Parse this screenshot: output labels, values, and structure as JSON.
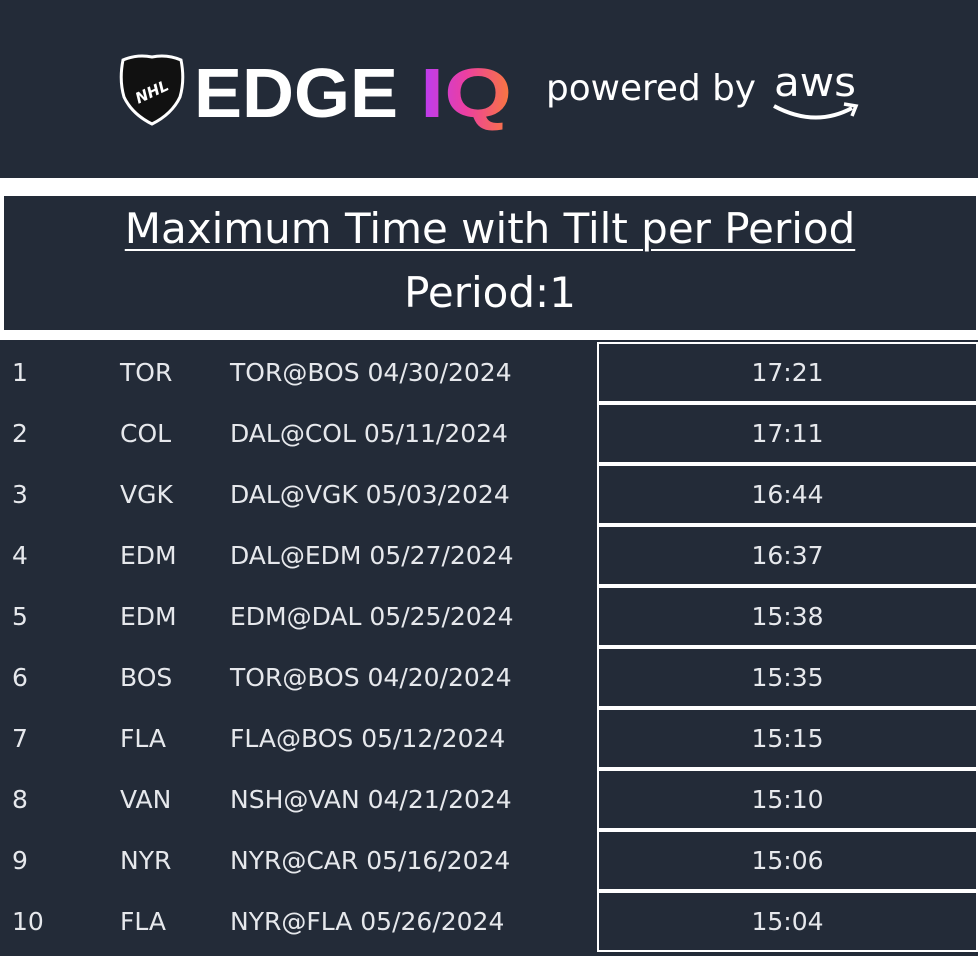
{
  "header": {
    "logo": "NHL",
    "brand": "EDGE",
    "brand_accent": "IQ",
    "powered_by": "powered by",
    "partner": "aws"
  },
  "title": "Maximum Time with Tilt per Period",
  "subtitle": "Period:1",
  "table": {
    "rows": [
      [
        "1",
        "TOR",
        "TOR@BOS 04/30/2024",
        "17:21"
      ],
      [
        "2",
        "COL",
        "DAL@COL 05/11/2024",
        "17:11"
      ],
      [
        "3",
        "VGK",
        "DAL@VGK 05/03/2024",
        "16:44"
      ],
      [
        "4",
        "EDM",
        "DAL@EDM 05/27/2024",
        "16:37"
      ],
      [
        "5",
        "EDM",
        "EDM@DAL 05/25/2024",
        "15:38"
      ],
      [
        "6",
        "BOS",
        "TOR@BOS 04/20/2024",
        "15:35"
      ],
      [
        "7",
        "FLA",
        "FLA@BOS 05/12/2024",
        "15:15"
      ],
      [
        "8",
        "VAN",
        "NSH@VAN 04/21/2024",
        "15:10"
      ],
      [
        "9",
        "NYR",
        "NYR@CAR 05/16/2024",
        "15:06"
      ],
      [
        "10",
        "FLA",
        "NYR@FLA 05/26/2024",
        "15:04"
      ]
    ]
  }
}
